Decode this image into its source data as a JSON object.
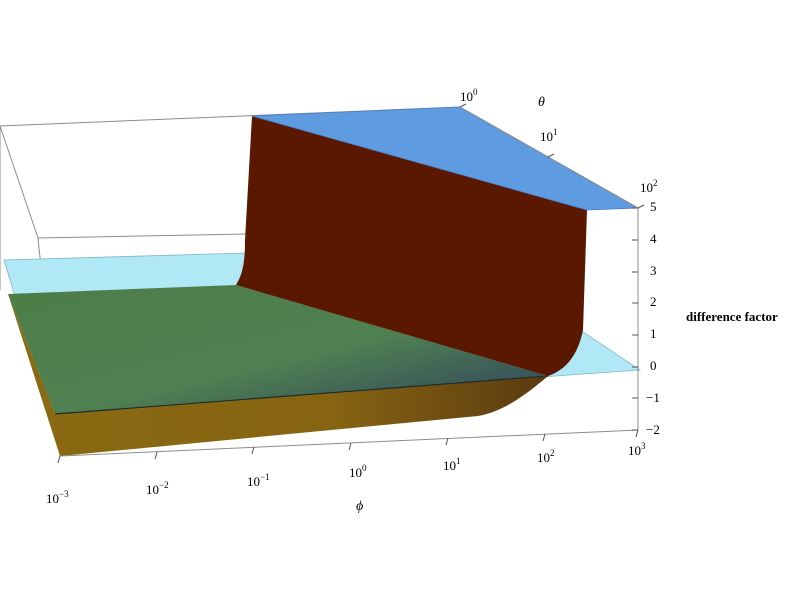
{
  "chart_data": {
    "type": "surface3d",
    "title": "",
    "axes": {
      "phi": {
        "label": "ϕ",
        "scale": "log",
        "range": [
          0.001,
          1000
        ],
        "ticks": [
          {
            "base": "10",
            "exp": "−3"
          },
          {
            "base": "10",
            "exp": "−2"
          },
          {
            "base": "10",
            "exp": "−1"
          },
          {
            "base": "10",
            "exp": "0"
          },
          {
            "base": "10",
            "exp": "1"
          },
          {
            "base": "10",
            "exp": "2"
          },
          {
            "base": "10",
            "exp": "3"
          }
        ]
      },
      "theta": {
        "label": "θ",
        "scale": "log",
        "range": [
          1,
          100
        ],
        "ticks": [
          {
            "base": "10",
            "exp": "0"
          },
          {
            "base": "10",
            "exp": "1"
          },
          {
            "base": "10",
            "exp": "2"
          }
        ]
      },
      "z": {
        "label": "difference factor",
        "range": [
          -2,
          5
        ],
        "ticks": [
          "5",
          "4",
          "3",
          "2",
          "1",
          "0",
          "−1",
          "−2"
        ]
      }
    },
    "surfaces": [
      {
        "name": "",
        "description_values": {
          "plateau": 5,
          "floor": -0.6,
          "transition_phi_at_theta_1": 0.1,
          "transition_phi_at_theta_100": 100
        },
        "color": "#5a1800"
      },
      {
        "name": "",
        "constant_z": 0,
        "color": "#a8e4f4"
      },
      {
        "name": "",
        "constant_z": 5,
        "color": "#5f9be0"
      }
    ],
    "box": true,
    "grid": false
  }
}
